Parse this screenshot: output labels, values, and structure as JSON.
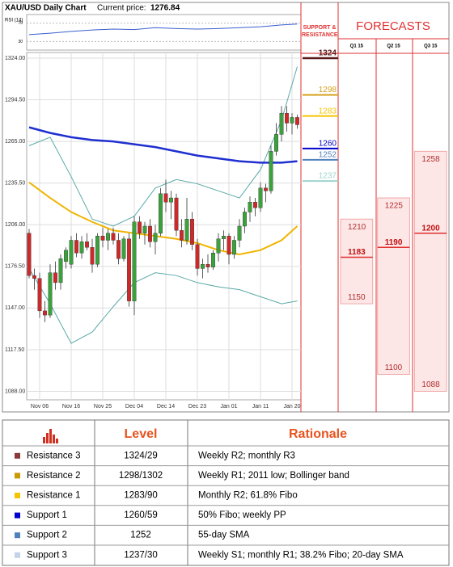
{
  "chart_data": {
    "type": "candlestick",
    "title": "XAU/USD Daily Chart",
    "current_price_label": "Current price:",
    "current_price": 1276.84,
    "categories": [
      null,
      null,
      "Nov 06",
      null,
      null,
      null,
      null,
      null,
      "Nov 16",
      null,
      null,
      null,
      null,
      null,
      "Nov 25",
      null,
      null,
      null,
      null,
      null,
      "Dec 04",
      null,
      null,
      null,
      null,
      null,
      "Dec 14",
      null,
      null,
      null,
      null,
      null,
      "Dec 23",
      null,
      null,
      null,
      null,
      null,
      "Jan 01",
      null,
      null,
      null,
      null,
      null,
      "Jan 11",
      null,
      null,
      null,
      null,
      null,
      "Jan 20",
      null
    ],
    "open": [
      1200,
      1170,
      1168,
      1145,
      1142,
      1172,
      1165,
      1180,
      1178,
      1195,
      1186,
      1194,
      1190,
      1178,
      1198,
      1195,
      1200,
      1195,
      1182,
      1196,
      1152,
      1208,
      1200,
      1205,
      1194,
      1200,
      1228,
      1222,
      1225,
      1202,
      1195,
      1210,
      1192,
      1175,
      1178,
      1176,
      1186,
      1196,
      1198,
      1185,
      1195,
      1205,
      1215,
      1222,
      1218,
      1232,
      1230,
      1258,
      1270,
      1285,
      1278,
      1282
    ],
    "high": [
      1203,
      1175,
      1172,
      1152,
      1178,
      1180,
      1185,
      1190,
      1198,
      1200,
      1198,
      1200,
      1196,
      1200,
      1204,
      1203,
      1204,
      1200,
      1198,
      1200,
      1212,
      1212,
      1208,
      1210,
      1206,
      1232,
      1238,
      1230,
      1228,
      1210,
      1225,
      1215,
      1196,
      1182,
      1185,
      1188,
      1200,
      1202,
      1200,
      1198,
      1210,
      1218,
      1226,
      1225,
      1236,
      1235,
      1262,
      1278,
      1290,
      1290,
      1285,
      1284
    ],
    "low": [
      1168,
      1160,
      1140,
      1137,
      1140,
      1160,
      1160,
      1175,
      1175,
      1183,
      1182,
      1188,
      1172,
      1176,
      1190,
      1188,
      1192,
      1178,
      1180,
      1148,
      1142,
      1196,
      1192,
      1190,
      1185,
      1198,
      1215,
      1210,
      1198,
      1190,
      1192,
      1188,
      1170,
      1168,
      1172,
      1174,
      1180,
      1188,
      1178,
      1182,
      1190,
      1200,
      1208,
      1212,
      1215,
      1222,
      1228,
      1255,
      1265,
      1272,
      1270,
      1274
    ],
    "close": [
      1170,
      1168,
      1145,
      1142,
      1172,
      1165,
      1182,
      1188,
      1195,
      1186,
      1194,
      1190,
      1178,
      1198,
      1195,
      1200,
      1195,
      1182,
      1196,
      1152,
      1208,
      1200,
      1205,
      1194,
      1200,
      1228,
      1222,
      1225,
      1202,
      1195,
      1210,
      1192,
      1175,
      1178,
      1176,
      1186,
      1196,
      1198,
      1185,
      1195,
      1205,
      1215,
      1222,
      1218,
      1232,
      1230,
      1258,
      1270,
      1285,
      1278,
      1282,
      1276.84
    ],
    "up_color": "#3aa23a",
    "down_color": "#d02828",
    "ylim": [
      1082,
      1328
    ],
    "yticks": [
      {
        "value": 1324,
        "label": "1324.00"
      },
      {
        "value": 1294.5,
        "label": "1294.50"
      },
      {
        "value": 1265,
        "label": "1265.00"
      },
      {
        "value": 1235.5,
        "label": "1235.50"
      },
      {
        "value": 1206,
        "label": "1206.00"
      },
      {
        "value": 1176.5,
        "label": "1176.50"
      },
      {
        "value": 1147,
        "label": "1147.00"
      },
      {
        "value": 1117.5,
        "label": "1117.50"
      },
      {
        "value": 1088,
        "label": "1088.00"
      }
    ],
    "grid": true,
    "lines": [
      {
        "color": "#5aa9a8",
        "width": 1,
        "x": [
          0,
          4,
          8,
          12,
          16,
          20,
          24,
          28,
          32,
          36,
          40,
          44,
          48,
          51
        ],
        "values": [
          1262,
          1268,
          1240,
          1210,
          1205,
          1212,
          1232,
          1238,
          1235,
          1230,
          1225,
          1245,
          1280,
          1318
        ]
      },
      {
        "color": "#5aa9a8",
        "width": 1,
        "x": [
          0,
          4,
          8,
          12,
          16,
          20,
          24,
          28,
          32,
          36,
          40,
          44,
          48,
          51
        ],
        "values": [
          1175,
          1150,
          1122,
          1130,
          1148,
          1165,
          1172,
          1170,
          1165,
          1162,
          1160,
          1155,
          1150,
          1152
        ]
      },
      {
        "color": "#f0b400",
        "width": 2,
        "x": [
          0,
          4,
          8,
          12,
          16,
          20,
          24,
          28,
          32,
          36,
          40,
          44,
          48,
          51
        ],
        "values": [
          1236,
          1225,
          1215,
          1208,
          1202,
          1200,
          1198,
          1196,
          1193,
          1188,
          1185,
          1188,
          1195,
          1205
        ]
      },
      {
        "color": "#1f2fd0",
        "width": 2.5,
        "x": [
          0,
          4,
          8,
          12,
          16,
          20,
          24,
          28,
          32,
          36,
          40,
          44,
          48,
          51
        ],
        "values": [
          1275,
          1271,
          1268,
          1266,
          1265,
          1263,
          1261,
          1258,
          1255,
          1253,
          1251,
          1250,
          1250,
          1251
        ]
      }
    ],
    "rsi": {
      "label": "RSI (14)",
      "ylim": [
        15,
        85
      ],
      "yticks": [
        70,
        30
      ],
      "color": "#3a5fcd",
      "x": [
        0,
        4,
        8,
        12,
        16,
        20,
        24,
        28,
        32,
        36,
        40,
        44,
        48,
        51
      ],
      "values": [
        45,
        48,
        52,
        55,
        57,
        56,
        60,
        58,
        57,
        58,
        60,
        62,
        66,
        68
      ]
    },
    "support_resistance": {
      "title": "SUPPORT & RESISTANCE",
      "levels": [
        {
          "value": 1324,
          "color": "#5a1a1a"
        },
        {
          "value": 1298,
          "color": "#d4a017"
        },
        {
          "value": 1283,
          "color": "#f5c400"
        },
        {
          "value": 1260,
          "color": "#0000cc"
        },
        {
          "value": 1252,
          "color": "#4f81bd"
        },
        {
          "value": 1237,
          "color": "#9fd4cf"
        }
      ]
    },
    "forecasts": {
      "title": "FORECASTS",
      "color": "#e03030",
      "columns": [
        {
          "label": "Q1 15",
          "high": 1210,
          "mid": 1183,
          "low": 1150
        },
        {
          "label": "Q2 15",
          "high": 1225,
          "mid": 1190,
          "low": 1100
        },
        {
          "label": "Q3 15",
          "high": 1258,
          "mid": 1200,
          "low": 1088
        }
      ]
    }
  },
  "table": {
    "header": {
      "level": "Level",
      "rationale": "Rationale"
    },
    "rows": [
      {
        "label": "Resistance 3",
        "level": "1324/29",
        "rationale": "Weekly R2; monthly R3",
        "color": "#8b3a3a"
      },
      {
        "label": "Resistance 2",
        "level": "1298/1302",
        "rationale": "Weekly R1; 2011 low; Bollinger band",
        "color": "#c89a00"
      },
      {
        "label": "Resistance 1",
        "level": "1283/90",
        "rationale": "Monthly R2; 61.8% Fibo",
        "color": "#f5c400"
      },
      {
        "label": "Support 1",
        "level": "1260/59",
        "rationale": "50% Fibo; weekly PP",
        "color": "#0000cc"
      },
      {
        "label": "Support 2",
        "level": "1252",
        "rationale": "55-day SMA",
        "color": "#4f81bd"
      },
      {
        "label": "Support 3",
        "level": "1237/30",
        "rationale": "Weekly S1; monthly R1; 38.2% Fibo; 20-day SMA",
        "color": "#c5d3e8"
      }
    ]
  }
}
